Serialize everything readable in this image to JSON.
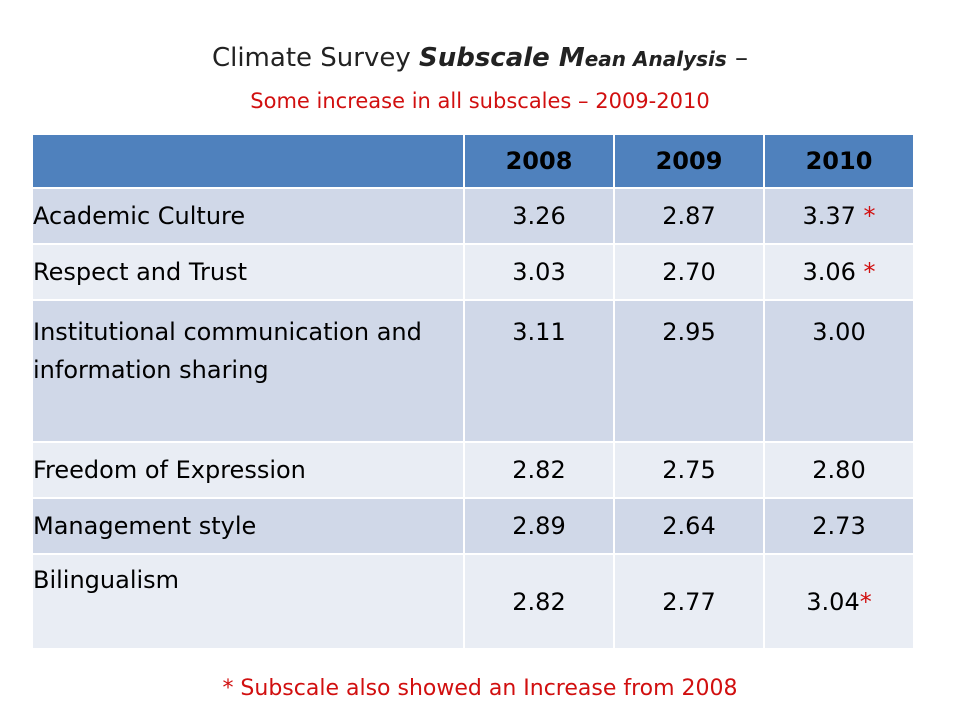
{
  "title": {
    "part1": "Climate Survey ",
    "part2": "Subscale M",
    "part3": "ean Analysis",
    "part4": " –"
  },
  "subtitle": "Some increase in all subscales – 2009-2010",
  "table": {
    "headers": [
      "",
      "2008",
      "2009",
      "2010"
    ],
    "rows": [
      {
        "label": "Academic Culture",
        "v2008": "3.26",
        "v2009": "2.87",
        "v2010": "3.37 ",
        "star": "*"
      },
      {
        "label": "Respect and Trust",
        "v2008": "3.03",
        "v2009": "2.70",
        "v2010": "3.06 ",
        "star": "*"
      },
      {
        "label": "Institutional communication and information sharing",
        "v2008": "3.11",
        "v2009": "2.95",
        "v2010": "3.00",
        "star": ""
      },
      {
        "label": "Freedom of Expression",
        "v2008": "2.82",
        "v2009": "2.75",
        "v2010": "2.80",
        "star": ""
      },
      {
        "label": "Management style",
        "v2008": "2.89",
        "v2009": "2.64",
        "v2010": "2.73",
        "star": ""
      },
      {
        "label": "Bilingualism",
        "v2008": "2.82",
        "v2009": "2.77",
        "v2010": "3.04",
        "star": "*"
      }
    ]
  },
  "footnote": "* Subscale also showed an Increase from 2008",
  "colors": {
    "header_bg": "#4f81bd",
    "row_odd": "#d0d8e8",
    "row_even": "#e9edf4",
    "accent_red": "#d10f0f"
  }
}
